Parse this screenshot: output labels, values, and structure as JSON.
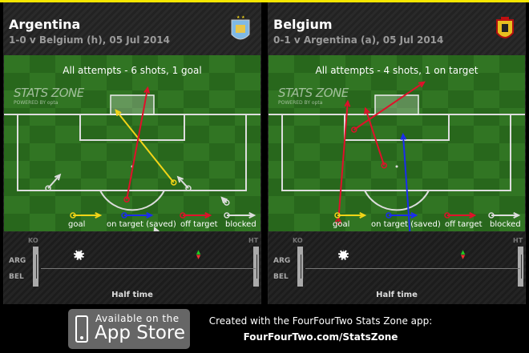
{
  "colors": {
    "goal": "#f2d417",
    "on_target": "#1a2cf0",
    "off_target": "#e0102a",
    "blocked": "#dddddd",
    "topbar": "#f5e600"
  },
  "legend": {
    "goal": "goal",
    "on_target": "on target (saved)",
    "off_target": "off target",
    "blocked": "blocked"
  },
  "timeline_labels": {
    "ko": "KO",
    "ht": "HT",
    "team_a": "ARG",
    "team_b": "BEL",
    "period": "Half time"
  },
  "panels": [
    {
      "team": "Argentina",
      "subtitle": "1-0 v Belgium (h), 05 Jul 2014",
      "crest": "afa-crest-icon",
      "title": "All attempts - 6 shots, 1 goal",
      "logo": "STATS ZONE",
      "logo_sub": "POWERED BY opta",
      "shots": [
        {
          "type": "goal",
          "from": [
            84.8,
            60.5
          ],
          "to": [
            100.9,
            45.9
          ]
        },
        {
          "type": "off_target",
          "from": [
            81.0,
            48.6
          ],
          "to": [
            105.9,
            53.9
          ]
        },
        {
          "type": "blocked",
          "from": [
            83.5,
            28.7
          ],
          "to": [
            86.5,
            31.7
          ]
        },
        {
          "type": "blocked",
          "from": [
            83.5,
            64.2
          ],
          "to": [
            86.0,
            61.6
          ]
        },
        {
          "type": "blocked",
          "from": [
            80.3,
            73.9
          ],
          "to": [
            81.4,
            72.7
          ]
        },
        {
          "type": "blocked",
          "from": [
            73.7,
            56.1
          ],
          "to": [
            74.6,
            55.7
          ]
        }
      ],
      "timeline_events": [
        {
          "type": "goal",
          "minute": 8,
          "team": "ARG"
        },
        {
          "type": "substitution",
          "minute": 33,
          "team": "ARG"
        }
      ]
    },
    {
      "team": "Belgium",
      "subtitle": "0-1 v Argentina (a), 05 Jul 2014",
      "crest": "rbfa-crest-icon",
      "title": "All attempts - 4 shots, 1 on target",
      "logo": "STATS ZONE",
      "logo_sub": "POWERED BY opta",
      "shots": [
        {
          "type": "off_target",
          "from": [
            76.0,
            35.2
          ],
          "to": [
            102.9,
            37.6
          ]
        },
        {
          "type": "off_target",
          "from": [
            96.6,
            39.2
          ],
          "to": [
            107.2,
            56.9
          ]
        },
        {
          "type": "off_target",
          "from": [
            88.6,
            46.8
          ],
          "to": [
            101.3,
            42.1
          ]
        },
        {
          "type": "on_target",
          "from": [
            72.8,
            53.4
          ],
          "to": [
            95.5,
            51.6
          ]
        }
      ],
      "timeline_events": [
        {
          "type": "goal",
          "minute": 8,
          "team": "ARG"
        },
        {
          "type": "substitution",
          "minute": 33,
          "team": "ARG"
        }
      ]
    }
  ],
  "footer": {
    "app_line1": "Available on the",
    "app_line2": "App Store",
    "credit": "Created with the FourFourTwo Stats Zone app:",
    "url": "FourFourTwo.com/StatsZone"
  }
}
